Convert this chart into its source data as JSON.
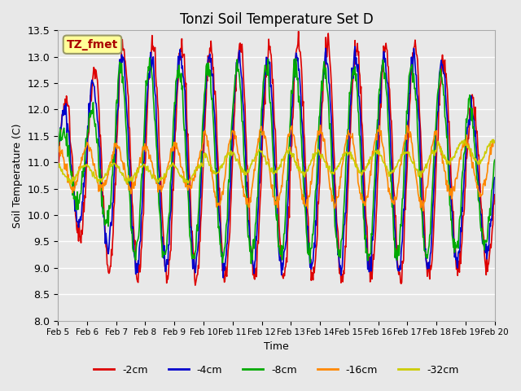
{
  "title": "Tonzi Soil Temperature Set D",
  "xlabel": "Time",
  "ylabel": "Soil Temperature (C)",
  "ylim": [
    8.0,
    13.5
  ],
  "annotation": "TZ_fmet",
  "series_labels": [
    "-2cm",
    "-4cm",
    "-8cm",
    "-16cm",
    "-32cm"
  ],
  "series_colors": [
    "#dd0000",
    "#0000cc",
    "#00aa00",
    "#ff8800",
    "#cccc00"
  ],
  "x_tick_labels": [
    "Feb 5",
    "Feb 6",
    "Feb 7",
    "Feb 8",
    "Feb 9",
    "Feb 10",
    "Feb 11",
    "Feb 12",
    "Feb 13",
    "Feb 14",
    "Feb 15",
    "Feb 16",
    "Feb 17",
    "Feb 18",
    "Feb 19",
    "Feb 20"
  ],
  "bg_color": "#e8e8e8",
  "plot_bg_color": "#e8e8e8",
  "legend_position": "lower center"
}
